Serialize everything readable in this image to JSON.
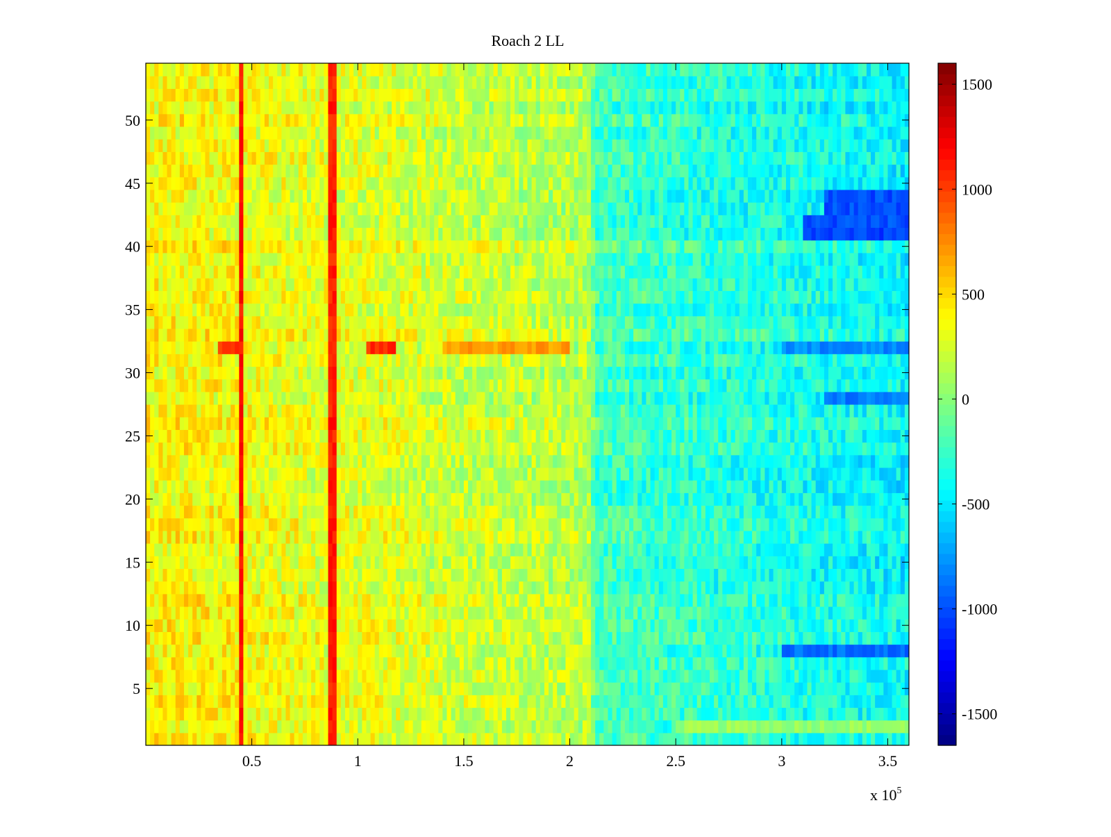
{
  "chart_data": {
    "type": "heatmap",
    "title": "Roach 2 LL",
    "xlabel": "",
    "ylabel": "",
    "x_exponent_label": "x 10",
    "x_exponent_power": "5",
    "x_scale_factor": 100000,
    "xlim": [
      0,
      360000
    ],
    "ylim": [
      0.5,
      54.5
    ],
    "x_ticks": [
      {
        "value": 50000,
        "label": "0.5"
      },
      {
        "value": 100000,
        "label": "1"
      },
      {
        "value": 150000,
        "label": "1.5"
      },
      {
        "value": 200000,
        "label": "2"
      },
      {
        "value": 250000,
        "label": "2.5"
      },
      {
        "value": 300000,
        "label": "3"
      },
      {
        "value": 350000,
        "label": "3.5"
      }
    ],
    "y_ticks": [
      {
        "value": 5,
        "label": "5"
      },
      {
        "value": 10,
        "label": "10"
      },
      {
        "value": 15,
        "label": "15"
      },
      {
        "value": 20,
        "label": "20"
      },
      {
        "value": 25,
        "label": "25"
      },
      {
        "value": 30,
        "label": "30"
      },
      {
        "value": 35,
        "label": "35"
      },
      {
        "value": 40,
        "label": "40"
      },
      {
        "value": 45,
        "label": "45"
      },
      {
        "value": 50,
        "label": "50"
      }
    ],
    "colorbar": {
      "colormap": "jet",
      "clim": [
        -1650,
        1600
      ],
      "ticks": [
        {
          "value": 1500,
          "label": "1500"
        },
        {
          "value": 1000,
          "label": "1000"
        },
        {
          "value": 500,
          "label": "500"
        },
        {
          "value": 0,
          "label": "0"
        },
        {
          "value": -500,
          "label": "-500"
        },
        {
          "value": -1000,
          "label": "-1000"
        },
        {
          "value": -1500,
          "label": "-1500"
        }
      ]
    },
    "rows": 54,
    "column_bins": 180,
    "column_profile": [
      {
        "x": 0,
        "value": 400
      },
      {
        "x": 40000,
        "value": 400
      },
      {
        "x": 70000,
        "value": 330
      },
      {
        "x": 110000,
        "value": 300
      },
      {
        "x": 150000,
        "value": 230
      },
      {
        "x": 180000,
        "value": 190
      },
      {
        "x": 209000,
        "value": 160
      },
      {
        "x": 212000,
        "value": -200
      },
      {
        "x": 250000,
        "value": -260
      },
      {
        "x": 300000,
        "value": -330
      },
      {
        "x": 360000,
        "value": -430
      }
    ],
    "vertical_features": [
      {
        "x": 45000,
        "value": 1150
      },
      {
        "x": 88000,
        "value": 1100
      }
    ],
    "row_features": [
      {
        "row": 32,
        "x_start": 35000,
        "x_end": 45000,
        "value": 1000
      },
      {
        "row": 32,
        "x_start": 105000,
        "x_end": 118000,
        "value": 1050
      },
      {
        "row": 32,
        "x_start": 140000,
        "x_end": 200000,
        "value": 700
      },
      {
        "row": 32,
        "x_start": 300000,
        "x_end": 360000,
        "value": -800
      },
      {
        "row": 43,
        "x_start": 320000,
        "x_end": 360000,
        "value": -1000
      },
      {
        "row": 44,
        "x_start": 320000,
        "x_end": 360000,
        "value": -1000
      },
      {
        "row": 41,
        "x_start": 310000,
        "x_end": 360000,
        "value": -1050
      },
      {
        "row": 42,
        "x_start": 310000,
        "x_end": 360000,
        "value": -1000
      },
      {
        "row": 8,
        "x_start": 300000,
        "x_end": 360000,
        "value": -900
      },
      {
        "row": 28,
        "x_start": 320000,
        "x_end": 360000,
        "value": -850
      },
      {
        "row": 2,
        "x_start": 250000,
        "x_end": 360000,
        "value": 50
      }
    ],
    "grid": false
  }
}
